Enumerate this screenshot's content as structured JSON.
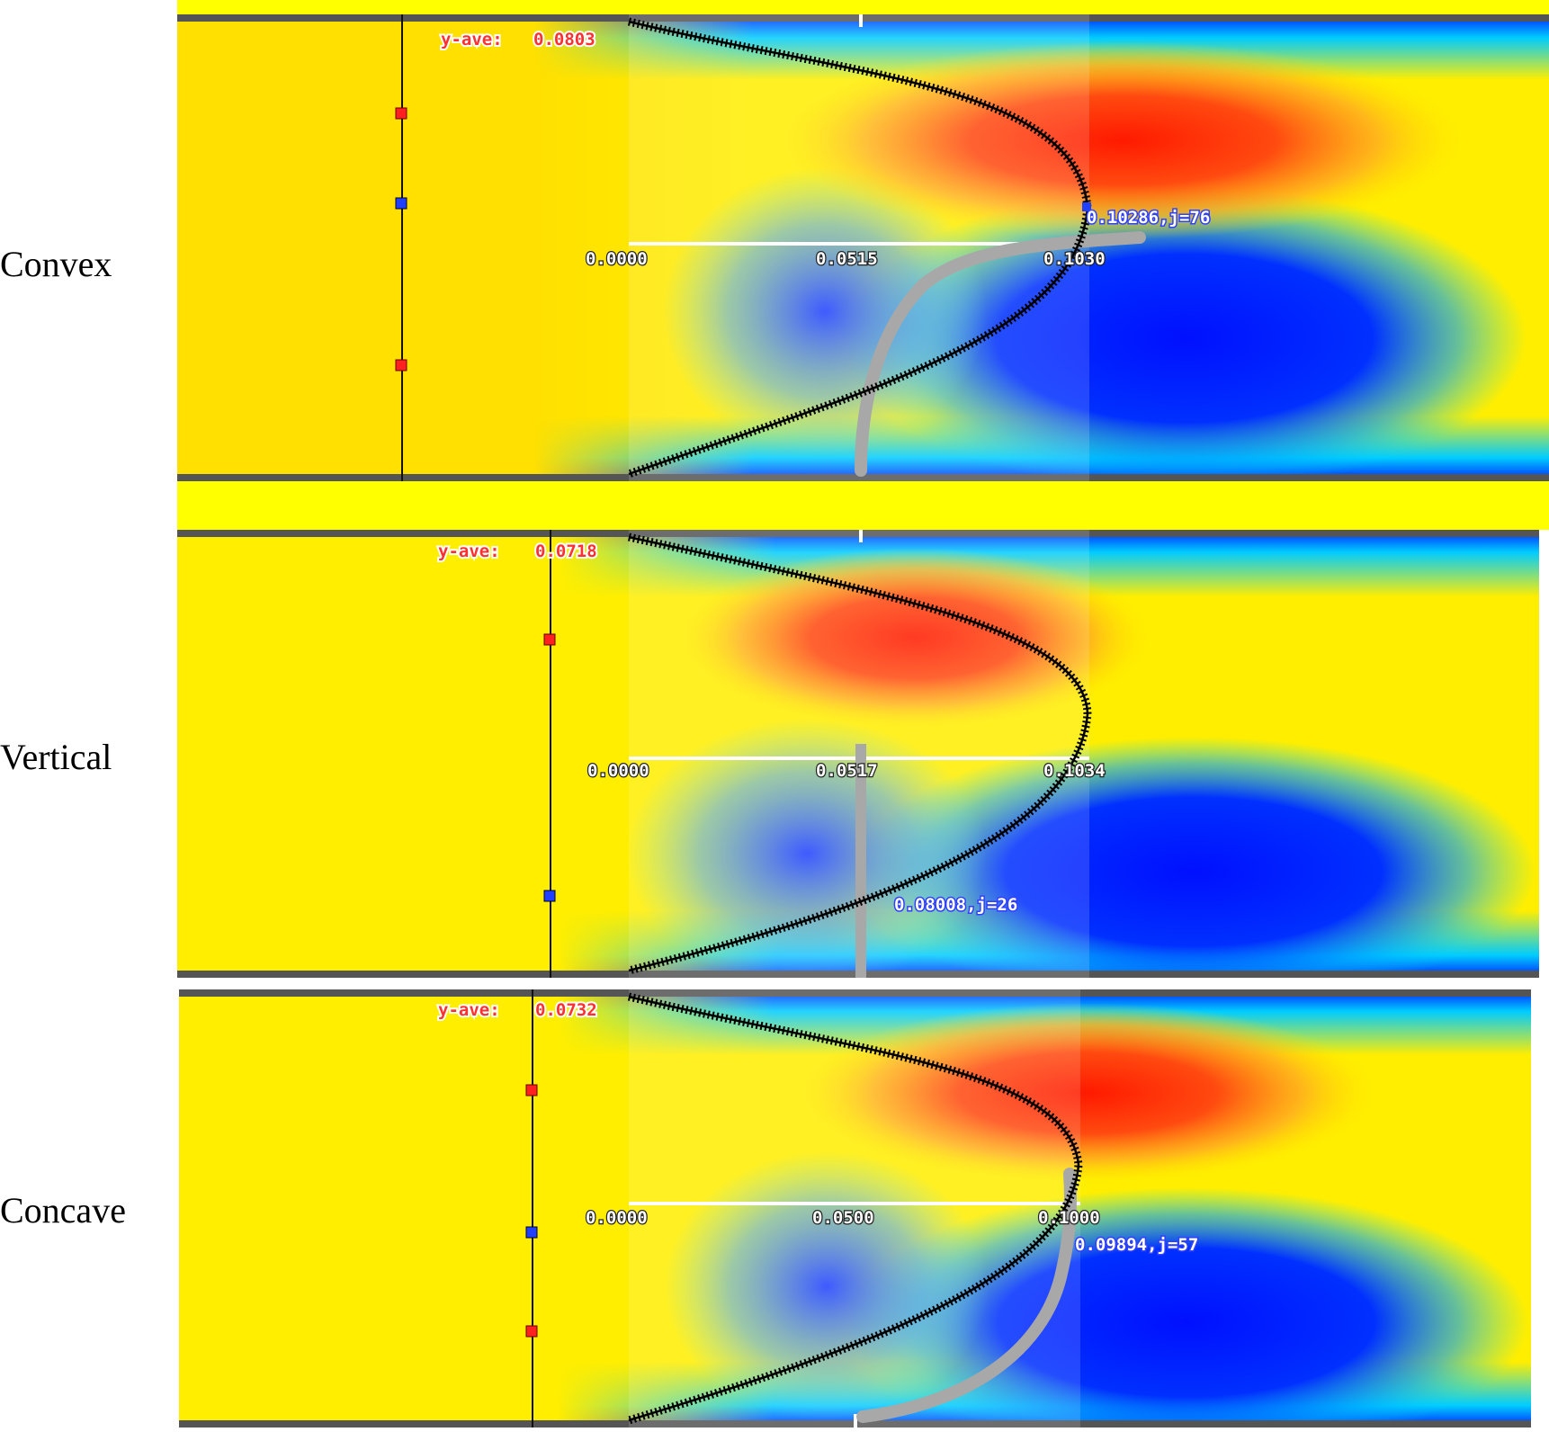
{
  "panels": [
    {
      "id": "convex",
      "label": "Convex",
      "yave_prefix": "y-ave:",
      "yave_value": "0.0803",
      "tick_labels": [
        "0.0000",
        "0.0515",
        "0.1030"
      ],
      "point_label": "0.10286,j=76",
      "colors": {
        "hot": "#ff1a00",
        "cold": "#0010ff"
      }
    },
    {
      "id": "vertical",
      "label": "Vertical",
      "yave_prefix": "y-ave:",
      "yave_value": "0.0718",
      "tick_labels": [
        "0.0000",
        "0.0517",
        "0.1034"
      ],
      "point_label": "0.08008,j=26",
      "colors": {
        "hot": "#ff1a00",
        "cold": "#0010ff"
      }
    },
    {
      "id": "concave",
      "label": "Concave",
      "yave_prefix": "y-ave:",
      "yave_value": "0.0732",
      "tick_labels": [
        "0.0000",
        "0.0500",
        "0.1000"
      ],
      "point_label": "0.09894,j=57",
      "colors": {
        "hot": "#ff1a00",
        "cold": "#0010ff"
      }
    }
  ]
}
